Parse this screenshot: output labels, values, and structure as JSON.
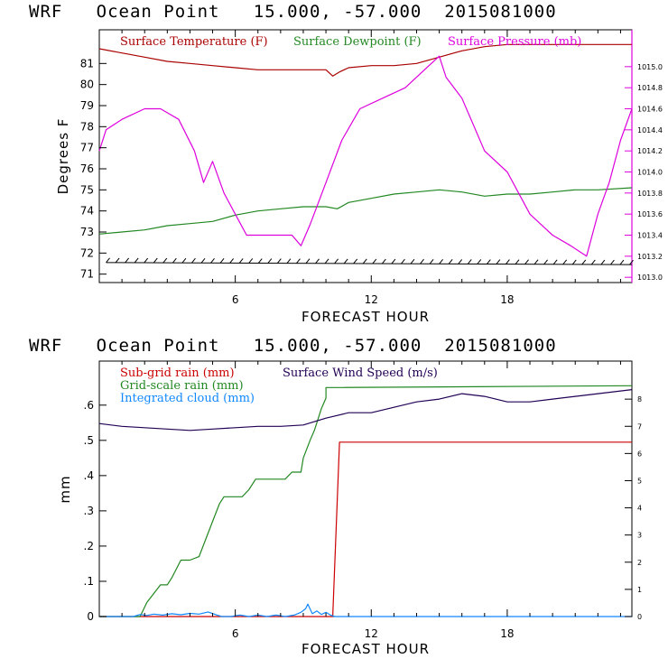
{
  "chart_data": [
    {
      "type": "line",
      "title": "WRF   Ocean Point   15.000, -57.000  2015081000",
      "xlabel": "FORECAST HOUR",
      "ylabel": "Degrees F",
      "xlim": [
        0,
        23.5
      ],
      "x_ticks": [
        6,
        12,
        18
      ],
      "ylim_left": [
        70.6,
        82.6
      ],
      "left_ticks": [
        71,
        72,
        73,
        74,
        75,
        76,
        77,
        78,
        79,
        80,
        81
      ],
      "ylim_right": [
        1012.95,
        1015.35
      ],
      "right_ticks": [
        1013.0,
        1013.2,
        1013.4,
        1013.6,
        1013.8,
        1014.0,
        1014.2,
        1014.4,
        1014.6,
        1014.8,
        1015.0
      ],
      "right_tick_labels": [
        "1013.0",
        "1013.2",
        "1013.4",
        "1013.6",
        "1013.8",
        "1014.0",
        "1014.2",
        "1014.4",
        "1014.6",
        "1014.8",
        "1015.0"
      ],
      "legend_placement": "top",
      "series": [
        {
          "name": "Surface Temperature (F)",
          "color": "#aa0000",
          "axis": "left",
          "x": [
            0,
            1,
            2,
            3,
            4,
            5,
            6,
            7,
            8,
            9,
            10,
            10.3,
            10.6,
            11,
            12,
            13,
            14,
            15,
            16,
            17,
            18,
            19,
            20,
            21,
            22,
            23.5
          ],
          "y": [
            81.7,
            81.5,
            81.3,
            81.1,
            81.0,
            80.9,
            80.8,
            80.7,
            80.7,
            80.7,
            80.7,
            80.4,
            80.6,
            80.8,
            80.9,
            80.9,
            81.0,
            81.3,
            81.6,
            81.8,
            81.9,
            81.9,
            81.9,
            81.9,
            81.9,
            81.9
          ]
        },
        {
          "name": "Surface Dewpoint (F)",
          "color": "#228822",
          "axis": "left",
          "x": [
            0,
            1,
            2,
            3,
            4,
            5,
            6,
            7,
            8,
            9,
            10,
            10.5,
            11,
            12,
            13,
            14,
            15,
            16,
            17,
            18,
            19,
            20,
            21,
            22,
            23.5
          ],
          "y": [
            72.9,
            73.0,
            73.1,
            73.3,
            73.4,
            73.5,
            73.8,
            74.0,
            74.1,
            74.2,
            74.2,
            74.1,
            74.4,
            74.6,
            74.8,
            74.9,
            75.0,
            74.9,
            74.7,
            74.8,
            74.8,
            74.9,
            75.0,
            75.0,
            75.1
          ]
        },
        {
          "name": "Surface Pressure (mb)",
          "color": "#dd00dd",
          "axis": "right",
          "x": [
            0,
            0.3,
            1,
            2,
            2.7,
            3.5,
            4.2,
            4.6,
            5.0,
            5.5,
            6,
            6.5,
            7,
            7.5,
            8,
            8.5,
            8.9,
            9.3,
            10,
            10.7,
            11.5,
            12.5,
            13.5,
            14.5,
            15,
            15.3,
            16,
            17,
            18,
            18.5,
            19,
            20,
            20.8,
            21.5,
            22,
            22.5,
            23,
            23.5
          ],
          "y": [
            1014.2,
            1014.4,
            1014.5,
            1014.6,
            1014.6,
            1014.5,
            1014.2,
            1013.9,
            1014.1,
            1013.8,
            1013.6,
            1013.4,
            1013.4,
            1013.4,
            1013.4,
            1013.4,
            1013.3,
            1013.5,
            1013.9,
            1014.3,
            1014.6,
            1014.7,
            1014.8,
            1015.0,
            1015.1,
            1014.9,
            1014.7,
            1014.2,
            1014.0,
            1013.8,
            1013.6,
            1013.4,
            1013.3,
            1013.2,
            1013.6,
            1013.9,
            1014.3,
            1014.6
          ]
        }
      ],
      "wind_barbs": {
        "left_value": 71.55,
        "right_value": 71.45,
        "x_start": 0.3,
        "x_step": 0.42,
        "x_end": 23.5,
        "color": "#000000"
      }
    },
    {
      "type": "line",
      "title": "WRF   Ocean Point   15.000, -57.000  2015081000",
      "xlabel": "FORECAST HOUR",
      "ylabel": "mm",
      "xlim": [
        0,
        23.5
      ],
      "x_ticks": [
        6,
        12,
        18
      ],
      "ylim_left": [
        0,
        0.725
      ],
      "left_ticks": [
        0,
        0.1,
        0.2,
        0.3,
        0.4,
        0.5,
        0.6
      ],
      "left_tick_labels": [
        "0",
        ".1",
        ".2",
        ".3",
        ".4",
        ".5",
        ".6"
      ],
      "ylim_right": [
        0,
        9.4
      ],
      "right_ticks": [
        0,
        1,
        2,
        3,
        4,
        5,
        6,
        7,
        8
      ],
      "right_tick_labels": [
        "0",
        "1",
        "2",
        "3",
        "4",
        "5",
        "6",
        "7",
        "8"
      ],
      "legend_placement": "top-left",
      "series": [
        {
          "name": "Sub-grid rain (mm)",
          "color": "#cc0000",
          "axis": "left",
          "x": [
            0,
            10.3,
            10.6,
            23.5
          ],
          "y": [
            0,
            0,
            0.495,
            0.495
          ]
        },
        {
          "name": "Grid-scale rain (mm)",
          "color": "#228822",
          "axis": "left",
          "x": [
            0,
            1.8,
            2.1,
            2.7,
            3.0,
            3.2,
            3.6,
            4.0,
            4.4,
            4.7,
            5.0,
            5.3,
            5.5,
            6.3,
            6.6,
            6.9,
            7.3,
            8.2,
            8.5,
            8.9,
            9.0,
            9.3,
            9.5,
            9.8,
            10.0,
            10.0,
            10.5,
            23.5
          ],
          "y": [
            0,
            0,
            0.04,
            0.09,
            0.09,
            0.11,
            0.16,
            0.16,
            0.17,
            0.22,
            0.27,
            0.32,
            0.34,
            0.34,
            0.36,
            0.39,
            0.39,
            0.39,
            0.41,
            0.41,
            0.45,
            0.5,
            0.53,
            0.59,
            0.62,
            0.65,
            0.65,
            0.655
          ]
        },
        {
          "name": "Integrated cloud (mm)",
          "color": "#1188ff",
          "axis": "left",
          "x": [
            0,
            1.5,
            1.8,
            2.1,
            2.4,
            2.8,
            3.2,
            3.6,
            4.0,
            4.4,
            4.8,
            5.2,
            5.4,
            5.8,
            6.2,
            6.6,
            7.0,
            7.4,
            7.8,
            8.2,
            8.6,
            8.9,
            9.1,
            9.2,
            9.4,
            9.6,
            9.8,
            10.0,
            10.2,
            10.4,
            23.5
          ],
          "y": [
            0,
            0,
            0.006,
            0.003,
            0.007,
            0.004,
            0.008,
            0.005,
            0.009,
            0.007,
            0.013,
            0.004,
            0,
            0,
            0.004,
            0,
            0.004,
            0,
            0.004,
            0,
            0.004,
            0.012,
            0.022,
            0.035,
            0.008,
            0.016,
            0.006,
            0.012,
            0.004,
            0,
            0
          ]
        },
        {
          "name": "Surface Wind Speed (m/s)",
          "color": "#220055",
          "axis": "right",
          "x": [
            0,
            1,
            2,
            3,
            4,
            5,
            6,
            7,
            8,
            9,
            10,
            11,
            12,
            13,
            14,
            15,
            16,
            17,
            18,
            19,
            20,
            21,
            22,
            23,
            23.5
          ],
          "y": [
            7.1,
            7.0,
            6.95,
            6.9,
            6.85,
            6.9,
            6.95,
            7.0,
            7.0,
            7.05,
            7.3,
            7.5,
            7.5,
            7.7,
            7.9,
            8.0,
            8.2,
            8.1,
            7.9,
            7.9,
            8.0,
            8.1,
            8.2,
            8.3,
            8.35
          ]
        }
      ]
    }
  ]
}
